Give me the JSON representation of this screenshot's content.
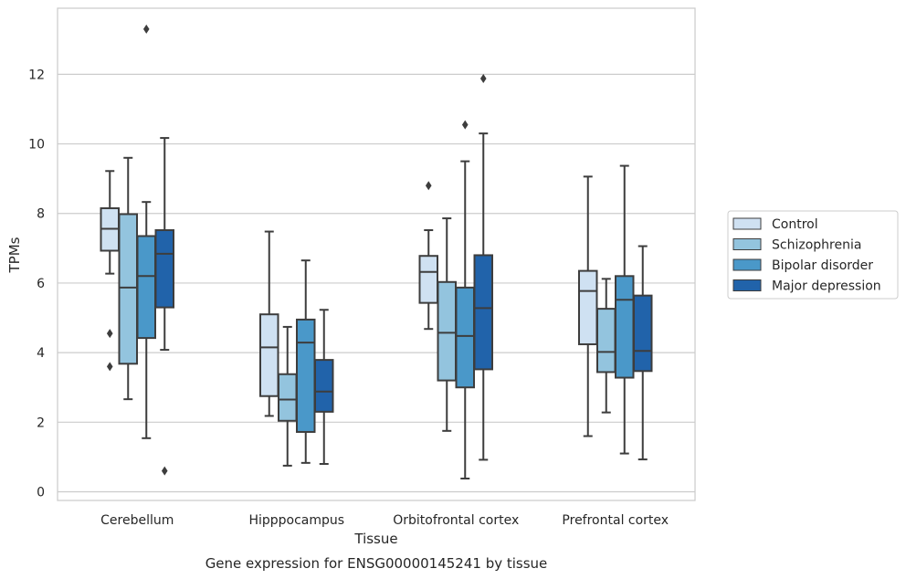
{
  "chart_data": {
    "type": "box",
    "title": "",
    "caption": "Gene expression for ENSG00000145241 by tissue",
    "xlabel": "Tissue",
    "ylabel": "TPMs",
    "ylim": [
      -0.25,
      13.9
    ],
    "yticks": [
      0,
      2,
      4,
      6,
      8,
      10,
      12
    ],
    "grid": "horizontal",
    "legend_position": "right",
    "categories": [
      "Cerebellum",
      "Hipppocampus",
      "Orbitofrontal cortex",
      "Prefrontal cortex"
    ],
    "series": [
      {
        "name": "Control",
        "color": "#cfe1f2",
        "boxes": [
          {
            "whislo": 6.27,
            "q1": 6.93,
            "med": 7.56,
            "q3": 8.15,
            "whishi": 9.22,
            "fliers": [
              4.55,
              3.6
            ]
          },
          {
            "whislo": 2.18,
            "q1": 2.75,
            "med": 4.15,
            "q3": 5.1,
            "whishi": 7.48,
            "fliers": []
          },
          {
            "whislo": 4.68,
            "q1": 5.43,
            "med": 6.32,
            "q3": 6.78,
            "whishi": 7.52,
            "fliers": [
              8.8
            ]
          },
          {
            "whislo": 1.6,
            "q1": 4.24,
            "med": 5.77,
            "q3": 6.35,
            "whishi": 9.06,
            "fliers": []
          }
        ]
      },
      {
        "name": "Schizophrenia",
        "color": "#93c4de",
        "boxes": [
          {
            "whislo": 2.66,
            "q1": 3.68,
            "med": 5.87,
            "q3": 7.98,
            "whishi": 9.6,
            "fliers": []
          },
          {
            "whislo": 0.75,
            "q1": 2.04,
            "med": 2.65,
            "q3": 3.38,
            "whishi": 4.74,
            "fliers": []
          },
          {
            "whislo": 1.75,
            "q1": 3.2,
            "med": 4.57,
            "q3": 6.03,
            "whishi": 7.86,
            "fliers": []
          },
          {
            "whislo": 2.28,
            "q1": 3.44,
            "med": 4.02,
            "q3": 5.26,
            "whishi": 6.12,
            "fliers": []
          }
        ]
      },
      {
        "name": "Bipolar disorder",
        "color": "#4a98c9",
        "boxes": [
          {
            "whislo": 1.54,
            "q1": 4.42,
            "med": 6.2,
            "q3": 7.35,
            "whishi": 8.33,
            "fliers": [
              13.3
            ]
          },
          {
            "whislo": 0.83,
            "q1": 1.72,
            "med": 4.29,
            "q3": 4.95,
            "whishi": 6.65,
            "fliers": []
          },
          {
            "whislo": 0.38,
            "q1": 3.0,
            "med": 4.48,
            "q3": 5.87,
            "whishi": 9.5,
            "fliers": [
              10.55
            ]
          },
          {
            "whislo": 1.1,
            "q1": 3.28,
            "med": 5.52,
            "q3": 6.2,
            "whishi": 9.37,
            "fliers": []
          }
        ]
      },
      {
        "name": "Major depression",
        "color": "#2163aa",
        "boxes": [
          {
            "whislo": 4.08,
            "q1": 5.3,
            "med": 6.84,
            "q3": 7.52,
            "whishi": 10.17,
            "fliers": [
              0.6
            ]
          },
          {
            "whislo": 0.8,
            "q1": 2.3,
            "med": 2.88,
            "q3": 3.79,
            "whishi": 5.23,
            "fliers": []
          },
          {
            "whislo": 0.92,
            "q1": 3.52,
            "med": 5.28,
            "q3": 6.8,
            "whishi": 10.3,
            "fliers": [
              11.88
            ]
          },
          {
            "whislo": 0.93,
            "q1": 3.47,
            "med": 4.05,
            "q3": 5.64,
            "whishi": 7.06,
            "fliers": []
          }
        ]
      }
    ]
  }
}
